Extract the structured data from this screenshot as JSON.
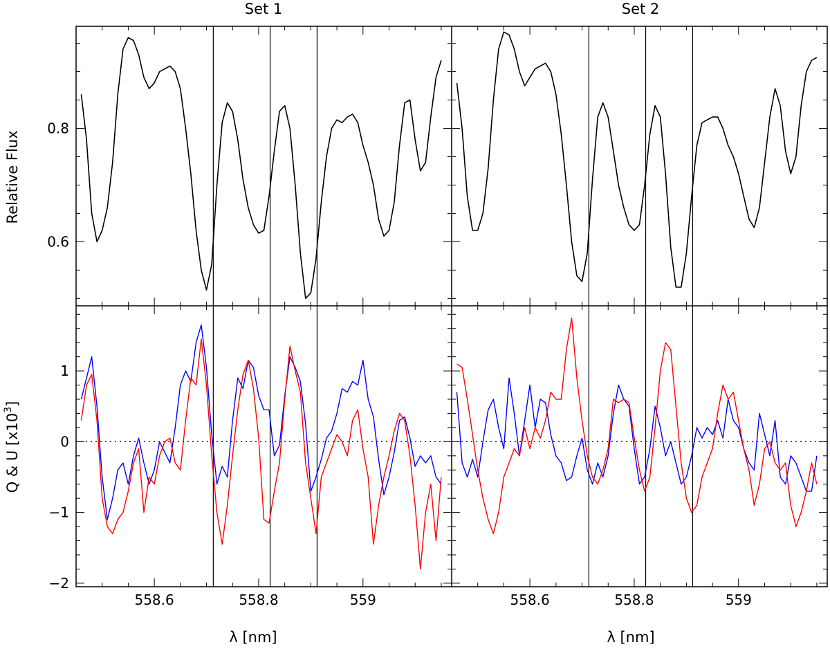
{
  "chart_data": {
    "type": "line",
    "titles": [
      "Set 1",
      "Set 2"
    ],
    "xlabel": "λ [nm]",
    "top_ylabel": "Relative Flux",
    "bottom_ylabel_main": "Q & U [x10",
    "bottom_ylabel_sup": "3",
    "bottom_ylabel_end": "]",
    "xlim": [
      558.45,
      559.17
    ],
    "x_ticks": [
      558.6,
      558.8,
      559.0
    ],
    "x_tick_labels": [
      "558.6",
      "558.8",
      "559"
    ],
    "top_ylim": [
      0.487,
      0.98
    ],
    "top_y_ticks": [
      0.6,
      0.8
    ],
    "top_y_tick_labels": [
      "0.6",
      "0.8"
    ],
    "bottom_ylim": [
      -2.05,
      1.92
    ],
    "bottom_y_ticks": [
      -2,
      -1,
      0,
      1
    ],
    "bottom_y_tick_labels": [
      "−2",
      "−1",
      "0",
      "1"
    ],
    "vertical_lines": [
      558.713,
      558.822,
      558.912
    ],
    "zero_line": {
      "value": 0,
      "style": "dotted"
    },
    "series_colors": {
      "flux": "#000000",
      "blue": "#0000ff",
      "red": "#ff0000"
    },
    "panels": [
      {
        "name": "Set 1",
        "flux": {
          "x": [
            558.46,
            558.47,
            558.48,
            558.49,
            558.5,
            558.51,
            558.52,
            558.53,
            558.54,
            558.55,
            558.56,
            558.57,
            558.58,
            558.59,
            558.6,
            558.61,
            558.62,
            558.63,
            558.64,
            558.65,
            558.66,
            558.67,
            558.68,
            558.69,
            558.7,
            558.71,
            558.72,
            558.73,
            558.74,
            558.75,
            558.76,
            558.77,
            558.78,
            558.79,
            558.8,
            558.81,
            558.82,
            558.83,
            558.84,
            558.85,
            558.86,
            558.87,
            558.88,
            558.89,
            558.9,
            558.91,
            558.92,
            558.93,
            558.94,
            558.95,
            558.96,
            558.97,
            558.98,
            558.99,
            559.0,
            559.01,
            559.02,
            559.03,
            559.04,
            559.05,
            559.06,
            559.07,
            559.08,
            559.09,
            559.1,
            559.11,
            559.12,
            559.13,
            559.14,
            559.15
          ],
          "y": [
            0.86,
            0.78,
            0.65,
            0.6,
            0.62,
            0.66,
            0.74,
            0.86,
            0.94,
            0.96,
            0.955,
            0.93,
            0.89,
            0.87,
            0.88,
            0.9,
            0.905,
            0.91,
            0.9,
            0.87,
            0.8,
            0.72,
            0.62,
            0.55,
            0.515,
            0.56,
            0.7,
            0.81,
            0.845,
            0.83,
            0.78,
            0.71,
            0.66,
            0.63,
            0.615,
            0.62,
            0.68,
            0.76,
            0.83,
            0.84,
            0.8,
            0.7,
            0.58,
            0.5,
            0.51,
            0.57,
            0.67,
            0.75,
            0.8,
            0.815,
            0.81,
            0.82,
            0.825,
            0.81,
            0.77,
            0.74,
            0.7,
            0.64,
            0.61,
            0.62,
            0.67,
            0.77,
            0.845,
            0.85,
            0.78,
            0.725,
            0.74,
            0.82,
            0.89,
            0.92
          ]
        },
        "blue": {
          "x": [
            558.46,
            558.47,
            558.48,
            558.49,
            558.5,
            558.51,
            558.52,
            558.53,
            558.54,
            558.55,
            558.56,
            558.57,
            558.58,
            558.59,
            558.6,
            558.61,
            558.62,
            558.63,
            558.64,
            558.65,
            558.66,
            558.67,
            558.68,
            558.69,
            558.7,
            558.71,
            558.72,
            558.73,
            558.74,
            558.75,
            558.76,
            558.77,
            558.78,
            558.79,
            558.8,
            558.81,
            558.82,
            558.83,
            558.84,
            558.85,
            558.86,
            558.87,
            558.88,
            558.89,
            558.9,
            558.91,
            558.92,
            558.93,
            558.94,
            558.95,
            558.96,
            558.97,
            558.98,
            558.99,
            559.0,
            559.01,
            559.02,
            559.03,
            559.04,
            559.05,
            559.06,
            559.07,
            559.08,
            559.09,
            559.1,
            559.11,
            559.12,
            559.13,
            559.14,
            559.15
          ],
          "y": [
            0.6,
            0.9,
            1.2,
            0.5,
            -0.5,
            -1.1,
            -0.8,
            -0.4,
            -0.3,
            -0.6,
            -0.2,
            0.05,
            -0.3,
            -0.6,
            -0.4,
            0.0,
            -0.15,
            -0.3,
            0.2,
            0.8,
            1.0,
            0.85,
            1.4,
            1.65,
            1.05,
            0.1,
            -0.6,
            -0.35,
            -0.5,
            0.3,
            0.9,
            0.75,
            1.15,
            1.05,
            0.65,
            0.45,
            0.45,
            -0.2,
            -0.05,
            0.65,
            1.2,
            1.05,
            0.85,
            0.25,
            -0.7,
            -0.5,
            -0.25,
            0.05,
            0.15,
            0.4,
            0.75,
            0.7,
            0.85,
            0.8,
            1.15,
            0.6,
            0.35,
            -0.25,
            -0.75,
            -0.5,
            -0.15,
            0.3,
            0.35,
            0.05,
            -0.35,
            -0.2,
            -0.3,
            -0.2,
            -0.5,
            -0.6
          ]
        },
        "red": {
          "x": [
            558.46,
            558.47,
            558.48,
            558.49,
            558.5,
            558.51,
            558.52,
            558.53,
            558.54,
            558.55,
            558.56,
            558.57,
            558.58,
            558.59,
            558.6,
            558.61,
            558.62,
            558.63,
            558.64,
            558.65,
            558.66,
            558.67,
            558.68,
            558.69,
            558.7,
            558.71,
            558.72,
            558.73,
            558.74,
            558.75,
            558.76,
            558.77,
            558.78,
            558.79,
            558.8,
            558.81,
            558.82,
            558.83,
            558.84,
            558.85,
            558.86,
            558.87,
            558.88,
            558.89,
            558.9,
            558.91,
            558.92,
            558.93,
            558.94,
            558.95,
            558.96,
            558.97,
            558.98,
            558.99,
            559.0,
            559.01,
            559.02,
            559.03,
            559.04,
            559.05,
            559.06,
            559.07,
            559.08,
            559.09,
            559.1,
            559.11,
            559.12,
            559.13,
            559.14,
            559.15
          ],
          "y": [
            0.3,
            0.8,
            0.95,
            0.3,
            -0.8,
            -1.2,
            -1.3,
            -1.1,
            -1.0,
            -0.7,
            -0.3,
            -0.1,
            -1.0,
            -0.5,
            -0.6,
            -0.2,
            0.0,
            0.05,
            -0.3,
            -0.4,
            0.3,
            0.9,
            0.8,
            1.45,
            0.8,
            -0.2,
            -1.0,
            -1.45,
            -0.9,
            -0.2,
            0.45,
            0.95,
            1.15,
            0.75,
            0.05,
            -1.1,
            -1.15,
            -0.7,
            -0.3,
            0.6,
            1.35,
            1.0,
            0.7,
            -0.3,
            -0.8,
            -1.3,
            -0.5,
            -0.3,
            -0.1,
            0.1,
            0.0,
            -0.2,
            0.3,
            0.45,
            -0.1,
            -0.5,
            -1.45,
            -0.9,
            -0.5,
            -0.2,
            0.15,
            0.4,
            0.3,
            -0.2,
            -0.9,
            -1.8,
            -1.0,
            -0.6,
            -1.4,
            -0.5
          ]
        }
      },
      {
        "name": "Set 2",
        "flux": {
          "x": [
            558.46,
            558.47,
            558.48,
            558.49,
            558.5,
            558.51,
            558.52,
            558.53,
            558.54,
            558.55,
            558.56,
            558.57,
            558.58,
            558.59,
            558.6,
            558.61,
            558.62,
            558.63,
            558.64,
            558.65,
            558.66,
            558.67,
            558.68,
            558.69,
            558.7,
            558.71,
            558.72,
            558.73,
            558.74,
            558.75,
            558.76,
            558.77,
            558.78,
            558.79,
            558.8,
            558.81,
            558.82,
            558.83,
            558.84,
            558.85,
            558.86,
            558.87,
            558.88,
            558.89,
            558.9,
            558.91,
            558.92,
            558.93,
            558.94,
            558.95,
            558.96,
            558.97,
            558.98,
            558.99,
            559.0,
            559.01,
            559.02,
            559.03,
            559.04,
            559.05,
            559.06,
            559.07,
            559.08,
            559.09,
            559.1,
            559.11,
            559.12,
            559.13,
            559.14,
            559.15
          ],
          "y": [
            0.88,
            0.8,
            0.68,
            0.62,
            0.62,
            0.65,
            0.73,
            0.85,
            0.94,
            0.97,
            0.965,
            0.94,
            0.9,
            0.875,
            0.89,
            0.905,
            0.91,
            0.915,
            0.9,
            0.86,
            0.79,
            0.7,
            0.6,
            0.54,
            0.53,
            0.58,
            0.71,
            0.82,
            0.845,
            0.82,
            0.76,
            0.7,
            0.66,
            0.63,
            0.62,
            0.63,
            0.7,
            0.79,
            0.84,
            0.82,
            0.72,
            0.59,
            0.52,
            0.52,
            0.58,
            0.68,
            0.77,
            0.81,
            0.815,
            0.82,
            0.82,
            0.8,
            0.77,
            0.75,
            0.72,
            0.68,
            0.64,
            0.625,
            0.66,
            0.74,
            0.82,
            0.87,
            0.84,
            0.76,
            0.72,
            0.75,
            0.84,
            0.9,
            0.92,
            0.925
          ]
        },
        "blue": {
          "x": [
            558.46,
            558.47,
            558.48,
            558.49,
            558.5,
            558.51,
            558.52,
            558.53,
            558.54,
            558.55,
            558.56,
            558.57,
            558.58,
            558.59,
            558.6,
            558.61,
            558.62,
            558.63,
            558.64,
            558.65,
            558.66,
            558.67,
            558.68,
            558.69,
            558.7,
            558.71,
            558.72,
            558.73,
            558.74,
            558.75,
            558.76,
            558.77,
            558.78,
            558.79,
            558.8,
            558.81,
            558.82,
            558.83,
            558.84,
            558.85,
            558.86,
            558.87,
            558.88,
            558.89,
            558.9,
            558.91,
            558.92,
            558.93,
            558.94,
            558.95,
            558.96,
            558.97,
            558.98,
            558.99,
            559.0,
            559.01,
            559.02,
            559.03,
            559.04,
            559.05,
            559.06,
            559.07,
            559.08,
            559.09,
            559.1,
            559.11,
            559.12,
            559.13,
            559.14,
            559.15
          ],
          "y": [
            0.7,
            -0.3,
            -0.5,
            -0.25,
            -0.5,
            0.0,
            0.45,
            0.6,
            0.2,
            -0.1,
            0.9,
            0.4,
            -0.2,
            0.3,
            0.8,
            0.2,
            0.6,
            0.55,
            0.1,
            -0.2,
            -0.3,
            -0.55,
            -0.5,
            -0.2,
            0.05,
            -0.4,
            -0.6,
            -0.3,
            -0.5,
            -0.2,
            0.4,
            0.8,
            0.6,
            0.5,
            -0.1,
            -0.6,
            -0.5,
            -0.1,
            0.5,
            0.2,
            -0.2,
            0.0,
            -0.3,
            -0.6,
            -0.5,
            -0.2,
            0.2,
            0.05,
            0.2,
            0.1,
            0.3,
            0.05,
            0.6,
            0.3,
            0.2,
            -0.1,
            -0.3,
            -0.4,
            0.4,
            0.1,
            -0.2,
            0.3,
            -0.5,
            -0.6,
            -0.2,
            -0.3,
            -0.5,
            -0.7,
            -0.7,
            -0.2
          ]
        },
        "red": {
          "x": [
            558.46,
            558.47,
            558.48,
            558.49,
            558.5,
            558.51,
            558.52,
            558.53,
            558.54,
            558.55,
            558.56,
            558.57,
            558.58,
            558.59,
            558.6,
            558.61,
            558.62,
            558.63,
            558.64,
            558.65,
            558.66,
            558.67,
            558.68,
            558.69,
            558.7,
            558.71,
            558.72,
            558.73,
            558.74,
            558.75,
            558.76,
            558.77,
            558.78,
            558.79,
            558.8,
            558.81,
            558.82,
            558.83,
            558.84,
            558.85,
            558.86,
            558.87,
            558.88,
            558.89,
            558.9,
            558.91,
            558.92,
            558.93,
            558.94,
            558.95,
            558.96,
            558.97,
            558.98,
            558.99,
            559.0,
            559.01,
            559.02,
            559.03,
            559.04,
            559.05,
            559.06,
            559.07,
            559.08,
            559.09,
            559.1,
            559.11,
            559.12,
            559.13,
            559.14,
            559.15
          ],
          "y": [
            1.1,
            1.05,
            0.6,
            0.1,
            -0.4,
            -0.8,
            -1.1,
            -1.3,
            -1.0,
            -0.5,
            -0.3,
            -0.1,
            -0.2,
            0.2,
            -0.1,
            0.2,
            0.05,
            0.3,
            0.7,
            0.6,
            0.6,
            1.3,
            1.75,
            0.9,
            0.3,
            -0.2,
            -0.5,
            -0.6,
            -0.4,
            -0.1,
            0.6,
            0.55,
            0.6,
            0.55,
            0.05,
            -0.4,
            -0.7,
            -0.5,
            0.2,
            1.0,
            1.4,
            1.3,
            0.5,
            -0.3,
            -0.8,
            -1.0,
            -0.9,
            -0.5,
            -0.3,
            -0.1,
            0.4,
            0.8,
            0.6,
            0.7,
            0.3,
            -0.1,
            -0.4,
            -0.9,
            -0.6,
            -0.1,
            0.0,
            -0.3,
            -0.4,
            -0.3,
            -0.9,
            -1.2,
            -1.0,
            -0.7,
            -0.3,
            -0.6
          ]
        }
      }
    ]
  }
}
